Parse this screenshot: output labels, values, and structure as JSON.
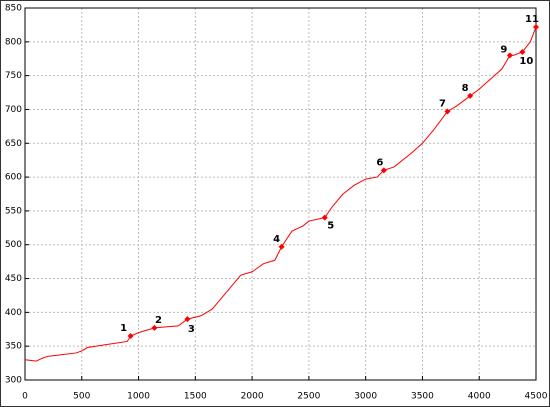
{
  "chart_data": {
    "type": "line",
    "x": [
      0,
      100,
      150,
      200,
      300,
      450,
      500,
      550,
      700,
      900,
      930,
      1000,
      1140,
      1200,
      1350,
      1430,
      1550,
      1650,
      1700,
      1800,
      1900,
      2000,
      2100,
      2200,
      2260,
      2350,
      2450,
      2500,
      2640,
      2700,
      2800,
      2900,
      3000,
      3100,
      3160,
      3250,
      3400,
      3500,
      3600,
      3720,
      3800,
      3920,
      4000,
      4100,
      4200,
      4270,
      4300,
      4380,
      4450,
      4500
    ],
    "series": [
      {
        "color": "#ff0000",
        "values": [
          330,
          328,
          332,
          335,
          337,
          340,
          343,
          348,
          352,
          357,
          365,
          370,
          377,
          378,
          380,
          390,
          395,
          405,
          415,
          435,
          455,
          460,
          472,
          477,
          497,
          520,
          528,
          535,
          540,
          555,
          575,
          588,
          597,
          600,
          610,
          615,
          635,
          650,
          670,
          697,
          705,
          720,
          730,
          745,
          760,
          780,
          780,
          785,
          800,
          822
        ]
      }
    ],
    "markers": {
      "color": "#ff0000",
      "x": [
        930,
        1140,
        1430,
        2260,
        2640,
        3160,
        3720,
        3920,
        4270,
        4380,
        4500
      ],
      "y": [
        365,
        377,
        390,
        497,
        540,
        610,
        697,
        720,
        780,
        785,
        822
      ],
      "labels": [
        "1",
        "2",
        "3",
        "4",
        "5",
        "6",
        "7",
        "8",
        "9",
        "10",
        "11"
      ]
    },
    "xlim": [
      0,
      4500
    ],
    "xticks": [
      0,
      500,
      1000,
      1500,
      2000,
      2500,
      3000,
      3500,
      4000,
      4500
    ],
    "ylim": [
      300,
      850
    ],
    "yticks": [
      300,
      350,
      400,
      450,
      500,
      550,
      600,
      650,
      700,
      750,
      800,
      850
    ],
    "grid": true
  }
}
